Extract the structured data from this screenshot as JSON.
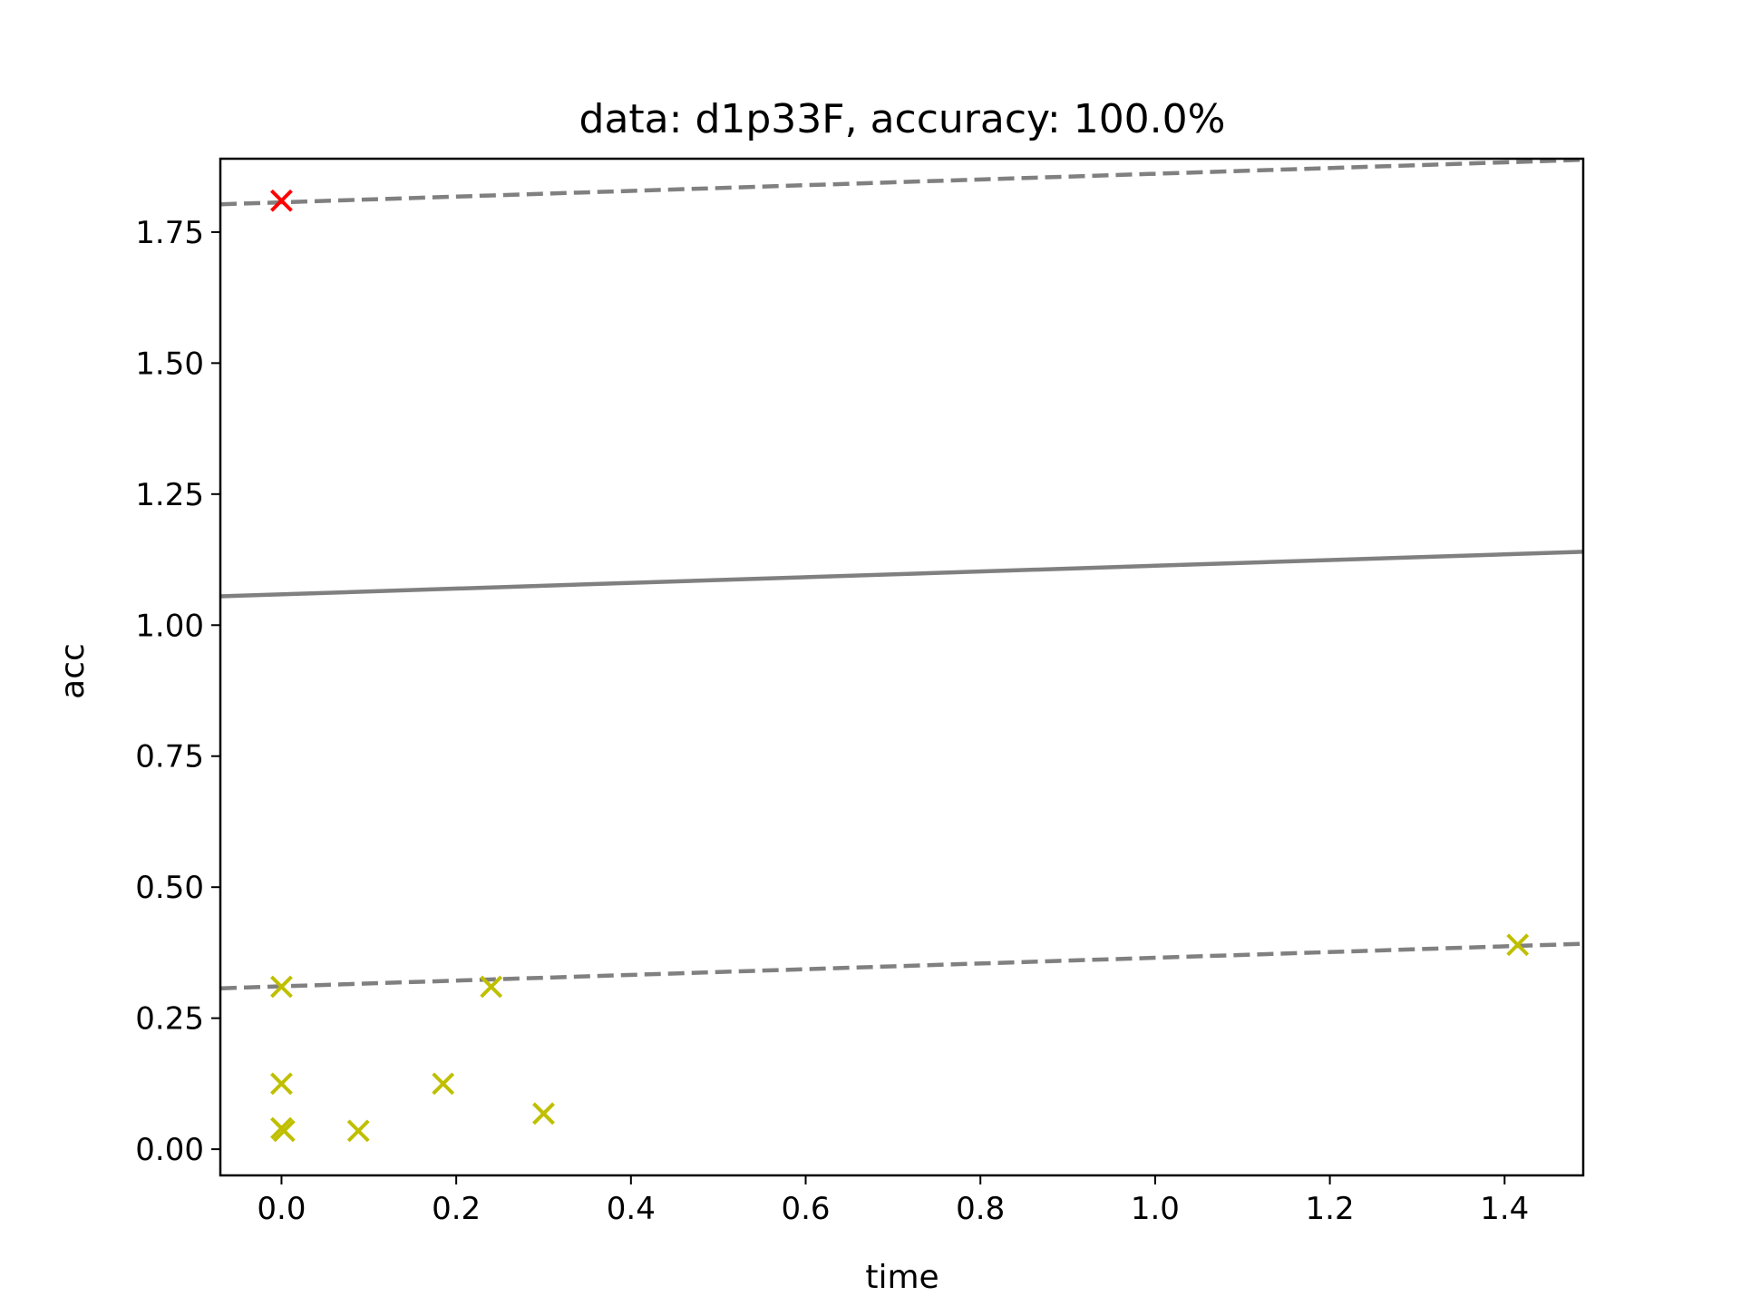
{
  "chart_data": {
    "type": "scatter",
    "title": "data: d1p33F, accuracy: 100.0%",
    "xlabel": "time",
    "ylabel": "acc",
    "xlim": [
      -0.07,
      1.49
    ],
    "ylim": [
      -0.05,
      1.89
    ],
    "xticks": [
      0.0,
      0.2,
      0.4,
      0.6,
      0.8,
      1.0,
      1.2,
      1.4
    ],
    "xtick_labels": [
      "0.0",
      "0.2",
      "0.4",
      "0.6",
      "0.8",
      "1.0",
      "1.2",
      "1.4"
    ],
    "yticks": [
      0.0,
      0.25,
      0.5,
      0.75,
      1.0,
      1.25,
      1.5,
      1.75
    ],
    "ytick_labels": [
      "0.00",
      "0.25",
      "0.50",
      "0.75",
      "1.00",
      "1.25",
      "1.50",
      "1.75"
    ],
    "grid": false,
    "marker": "x",
    "series": [
      {
        "color": "#ff0000",
        "points": [
          {
            "x": 0.0,
            "y": 1.81
          }
        ]
      },
      {
        "color": "#bfbf00",
        "points": [
          {
            "x": 0.0,
            "y": 0.31
          },
          {
            "x": 0.0,
            "y": 0.125
          },
          {
            "x": 0.0,
            "y": 0.04
          },
          {
            "x": 0.003,
            "y": 0.035
          },
          {
            "x": 0.088,
            "y": 0.035
          },
          {
            "x": 0.185,
            "y": 0.125
          },
          {
            "x": 0.24,
            "y": 0.31
          },
          {
            "x": 0.3,
            "y": 0.068
          },
          {
            "x": 1.415,
            "y": 0.39
          }
        ]
      }
    ],
    "lines": [
      {
        "style": "dashed",
        "color": "#808080",
        "x": [
          -0.07,
          1.49
        ],
        "y": [
          1.803,
          1.888
        ]
      },
      {
        "style": "solid",
        "color": "#808080",
        "x": [
          -0.07,
          1.49
        ],
        "y": [
          1.055,
          1.14
        ]
      },
      {
        "style": "dashed",
        "color": "#808080",
        "x": [
          -0.07,
          1.49
        ],
        "y": [
          0.307,
          0.392
        ]
      }
    ]
  }
}
